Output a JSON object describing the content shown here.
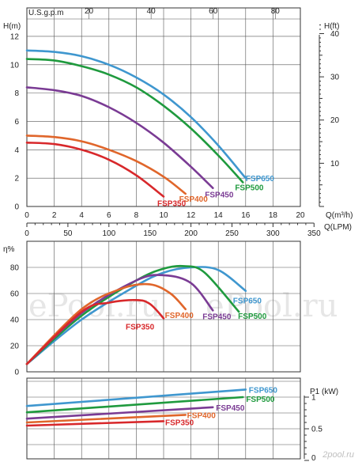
{
  "colors": {
    "FSP650": "#3f97cf",
    "FSP500": "#1f9a3e",
    "FSP450": "#7a3b94",
    "FSP400": "#e0662b",
    "FSP350": "#d8282b"
  },
  "watermarks": [
    "ePool.ru",
    "ePool.ru",
    "2pool.ru"
  ],
  "chart_data": [
    {
      "type": "line",
      "title": "",
      "top_axis_label": "U.S.g.p.m",
      "top_ticks": [
        20,
        40,
        60,
        80
      ],
      "ylabel": "H(m)",
      "ylabel_right": "H(ft)",
      "yticks": [
        0,
        2,
        4,
        6,
        8,
        10,
        12
      ],
      "yticks_right": [
        10,
        20,
        30,
        40
      ],
      "xlabel": "Q(m³/h)",
      "xlabel2": "Q(LPM)",
      "xticks": [
        0,
        2,
        4,
        6,
        8,
        10,
        12,
        14,
        16,
        18,
        20
      ],
      "xticks2": [
        0,
        50,
        100,
        150,
        200,
        250,
        300,
        350
      ],
      "xlim": [
        0,
        20
      ],
      "ylim": [
        0,
        13
      ],
      "grid": true,
      "series": [
        {
          "name": "FSP650",
          "x": [
            0,
            2,
            4,
            6,
            8,
            10,
            12,
            14,
            16
          ],
          "y": [
            11.0,
            10.9,
            10.6,
            10.0,
            9.1,
            7.9,
            6.3,
            4.3,
            2.0
          ]
        },
        {
          "name": "FSP500",
          "x": [
            0,
            2,
            4,
            6,
            8,
            10,
            12,
            14,
            15.8
          ],
          "y": [
            10.4,
            10.3,
            9.9,
            9.3,
            8.4,
            7.1,
            5.5,
            3.6,
            1.7
          ]
        },
        {
          "name": "FSP450",
          "x": [
            0,
            2,
            4,
            6,
            8,
            10,
            12,
            13.6
          ],
          "y": [
            8.4,
            8.2,
            7.8,
            7.0,
            5.9,
            4.5,
            2.8,
            1.3
          ]
        },
        {
          "name": "FSP400",
          "x": [
            0,
            2,
            4,
            6,
            8,
            10,
            11.6
          ],
          "y": [
            5.0,
            4.9,
            4.6,
            4.0,
            3.2,
            2.1,
            0.9
          ]
        },
        {
          "name": "FSP350",
          "x": [
            0,
            2,
            4,
            6,
            8,
            10
          ],
          "y": [
            4.5,
            4.4,
            4.0,
            3.3,
            2.2,
            0.7
          ]
        }
      ]
    },
    {
      "type": "line",
      "ylabel": "η%",
      "yticks": [
        0,
        20,
        40,
        60,
        80
      ],
      "xlim": [
        0,
        20
      ],
      "ylim": [
        0,
        100
      ],
      "grid": true,
      "series": [
        {
          "name": "FSP650",
          "x": [
            0,
            4,
            8,
            10,
            12,
            14,
            16
          ],
          "y": [
            6,
            40,
            66,
            76,
            80,
            78,
            62
          ]
        },
        {
          "name": "FSP500",
          "x": [
            0,
            4,
            8,
            10,
            11.5,
            13,
            15.5
          ],
          "y": [
            6,
            43,
            70,
            79,
            81,
            76,
            46
          ]
        },
        {
          "name": "FSP450",
          "x": [
            0,
            4,
            8,
            10,
            12,
            13.6
          ],
          "y": [
            6,
            45,
            70,
            74,
            68,
            47
          ]
        },
        {
          "name": "FSP400",
          "x": [
            0,
            4,
            7,
            9,
            10.5,
            11.6
          ],
          "y": [
            6,
            48,
            64,
            67,
            60,
            48
          ]
        },
        {
          "name": "FSP350",
          "x": [
            0,
            4,
            6,
            8,
            9,
            10
          ],
          "y": [
            6,
            46,
            53,
            55,
            52,
            41
          ]
        }
      ]
    },
    {
      "type": "line",
      "ylabel_right": "P1 (kW)",
      "yticks_right": [
        0,
        0.5,
        1
      ],
      "xlim": [
        0,
        20
      ],
      "ylim": [
        0,
        1.3
      ],
      "grid": true,
      "series": [
        {
          "name": "FSP650",
          "x": [
            0,
            16
          ],
          "y": [
            0.86,
            1.12
          ]
        },
        {
          "name": "FSP500",
          "x": [
            0,
            15.8
          ],
          "y": [
            0.76,
            1.0
          ]
        },
        {
          "name": "FSP450",
          "x": [
            0,
            13.6
          ],
          "y": [
            0.66,
            0.84
          ]
        },
        {
          "name": "FSP400",
          "x": [
            0,
            11.6
          ],
          "y": [
            0.6,
            0.72
          ]
        },
        {
          "name": "FSP350",
          "x": [
            0,
            10
          ],
          "y": [
            0.55,
            0.62
          ]
        }
      ]
    }
  ]
}
